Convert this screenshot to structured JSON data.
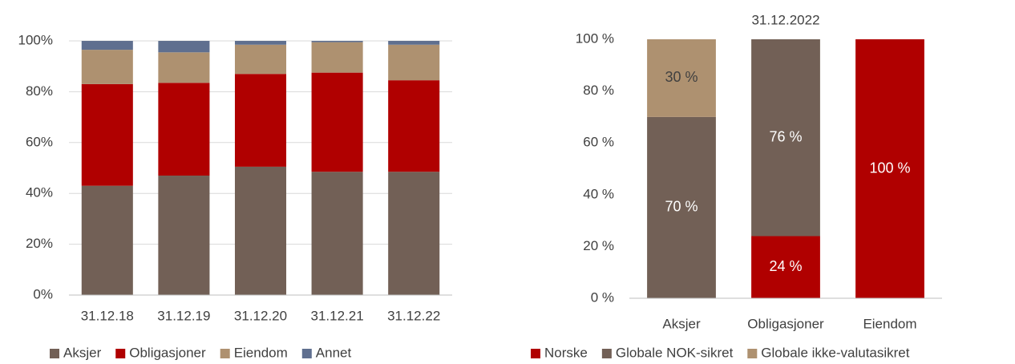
{
  "chart_data": [
    {
      "type": "stacked_bar",
      "categories": [
        "31.12.18",
        "31.12.19",
        "31.12.20",
        "31.12.21",
        "31.12.22"
      ],
      "series": [
        {
          "name": "Aksjer",
          "color": "#726056",
          "values": [
            43,
            47,
            50.5,
            48.5,
            48.5
          ]
        },
        {
          "name": "Obligasjoner",
          "color": "#b00000",
          "values": [
            40,
            36.5,
            36.5,
            39,
            36
          ]
        },
        {
          "name": "Eiendom",
          "color": "#ae9170",
          "values": [
            13.5,
            12,
            11.5,
            12,
            14
          ]
        },
        {
          "name": "Annet",
          "color": "#5f6f8f",
          "values": [
            3.5,
            4.5,
            1.5,
            0.5,
            1.5
          ]
        }
      ],
      "ylim": [
        0,
        100
      ],
      "yticks": [
        {
          "value": 0,
          "label": "0%"
        },
        {
          "value": 20,
          "label": "20%"
        },
        {
          "value": 40,
          "label": "40%"
        },
        {
          "value": 60,
          "label": "60%"
        },
        {
          "value": 80,
          "label": "80%"
        },
        {
          "value": 100,
          "label": "100%"
        }
      ],
      "grid": true,
      "legend": "bottom"
    },
    {
      "type": "stacked_bar",
      "title": "31.12.2022",
      "categories": [
        "Aksjer",
        "Obligasjoner",
        "Eiendom"
      ],
      "series": [
        {
          "name": "Norske",
          "color": "#b00000",
          "values": [
            0,
            24,
            100
          ],
          "value_labels": [
            null,
            "24 %",
            "100 %"
          ]
        },
        {
          "name": "Globale NOK-sikret",
          "color": "#726056",
          "values": [
            70,
            76,
            0
          ],
          "value_labels": [
            "70 %",
            "76 %",
            null
          ]
        },
        {
          "name": "Globale ikke-valutasikret",
          "color": "#ae9170",
          "values": [
            30,
            0,
            0
          ],
          "value_labels": [
            "30 %",
            null,
            null
          ]
        }
      ],
      "ylim": [
        0,
        100
      ],
      "yticks": [
        {
          "value": 0,
          "label": "0 %"
        },
        {
          "value": 20,
          "label": "20 %"
        },
        {
          "value": 40,
          "label": "40 %"
        },
        {
          "value": 60,
          "label": "60 %"
        },
        {
          "value": 80,
          "label": "80 %"
        },
        {
          "value": 100,
          "label": "100 %"
        }
      ],
      "grid": false,
      "legend": "bottom"
    }
  ]
}
